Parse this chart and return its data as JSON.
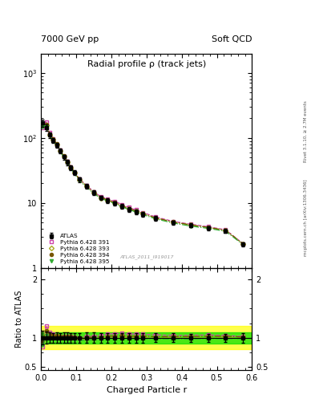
{
  "title": "Radial profile ρ (track jets)",
  "top_left_label": "7000 GeV pp",
  "top_right_label": "Soft QCD",
  "right_label_upper": "Rivet 3.1.10, ≥ 2.7M events",
  "right_label_lower": "mcplots.cern.ch [arXiv:1306.3436]",
  "watermark": "ATLAS_2011_I919017",
  "xlabel": "Charged Particle r",
  "ylabel_lower": "Ratio to ATLAS",
  "xlim": [
    0.0,
    0.6
  ],
  "ylim_upper": [
    1.0,
    2000.0
  ],
  "ylim_lower": [
    0.45,
    2.2
  ],
  "atlas_x": [
    0.005,
    0.015,
    0.025,
    0.035,
    0.045,
    0.055,
    0.065,
    0.075,
    0.085,
    0.095,
    0.11,
    0.13,
    0.15,
    0.17,
    0.19,
    0.21,
    0.23,
    0.25,
    0.27,
    0.29,
    0.325,
    0.375,
    0.425,
    0.475,
    0.525,
    0.575
  ],
  "atlas_y": [
    170,
    145,
    110,
    92,
    78,
    63,
    51,
    42,
    35,
    29,
    23,
    18,
    14.5,
    12,
    10.8,
    9.8,
    8.8,
    8.0,
    7.3,
    6.7,
    5.8,
    5.0,
    4.5,
    4.1,
    3.7,
    2.3
  ],
  "atlas_yerr": [
    20,
    15,
    10,
    8,
    7,
    5,
    4.5,
    3.8,
    3,
    2.5,
    2.0,
    1.6,
    1.3,
    1.0,
    0.9,
    0.8,
    0.75,
    0.65,
    0.6,
    0.55,
    0.45,
    0.38,
    0.33,
    0.28,
    0.25,
    0.18
  ],
  "py391_y": [
    145,
    175,
    120,
    98,
    80,
    64,
    52,
    43,
    36,
    29.5,
    23,
    18.5,
    14.8,
    12.5,
    11.5,
    10.5,
    9.5,
    8.5,
    7.8,
    7.1,
    6.1,
    5.2,
    4.7,
    4.3,
    3.85,
    2.35
  ],
  "py393_y": [
    160,
    155,
    113,
    93,
    79,
    63,
    51,
    42,
    35,
    29,
    22.5,
    17.8,
    14.3,
    11.9,
    10.9,
    9.9,
    8.9,
    8.1,
    7.4,
    6.8,
    5.85,
    5.05,
    4.55,
    4.15,
    3.75,
    2.32
  ],
  "py394_y": [
    162,
    162,
    116,
    96,
    81,
    65,
    52.5,
    43,
    36,
    29.5,
    23,
    18.2,
    14.6,
    12.2,
    11.1,
    10.1,
    9.1,
    8.2,
    7.5,
    6.9,
    5.9,
    5.1,
    4.6,
    4.2,
    3.8,
    2.33
  ],
  "py395_y": [
    148,
    150,
    110,
    91,
    77,
    62,
    50,
    41,
    34.5,
    28.3,
    22,
    17.4,
    14.0,
    11.7,
    10.7,
    9.7,
    8.7,
    7.9,
    7.2,
    6.6,
    5.7,
    4.9,
    4.4,
    4.05,
    3.65,
    2.27
  ],
  "atlas_color": "#000000",
  "py391_color": "#cc44aa",
  "py393_color": "#aaaa22",
  "py394_color": "#775500",
  "py395_color": "#33aa33",
  "band_yellow": "#ffff00",
  "band_green": "#00dd00",
  "legend_labels": [
    "ATLAS",
    "Pythia 6.428 391",
    "Pythia 6.428 393",
    "Pythia 6.428 394",
    "Pythia 6.428 395"
  ]
}
